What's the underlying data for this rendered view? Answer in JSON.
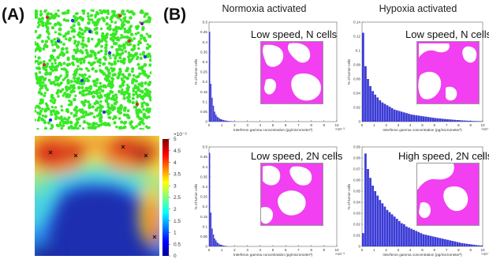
{
  "figure": {
    "panel_a_label": "(A)",
    "panel_b_label": "(B)",
    "colorbar": {
      "exponent": "×10⁻³",
      "ticks": [
        "5",
        "4.5",
        "4",
        "3.5",
        "3",
        "2.5",
        "2",
        "1.5",
        "1",
        "0.5",
        "0"
      ],
      "range": [
        0,
        0.005
      ]
    },
    "columns": [
      "Normoxia activated",
      "Hypoxia activated"
    ]
  },
  "chart_data": [
    {
      "type": "bar",
      "column": "Normoxia activated",
      "inset_label": "Low speed, N cells",
      "xlabel": "Interferon gamma concentration (pg/micrometer³)",
      "ylabel": "% of tumor cells",
      "x_exponent": "×10⁻³",
      "xlim": [
        0,
        10
      ],
      "ylim": [
        0,
        0.5
      ],
      "yticks": [
        "0",
        "0.05",
        "0.1",
        "0.15",
        "0.2",
        "0.25",
        "0.3",
        "0.35",
        "0.4",
        "0.45",
        "0.5"
      ],
      "xticks": [
        "0",
        "1",
        "2",
        "3",
        "4",
        "5",
        "6",
        "7",
        "8",
        "9",
        "10"
      ],
      "x": [
        0.0,
        0.1,
        0.2,
        0.3,
        0.4,
        0.5,
        0.6,
        0.7,
        0.8,
        0.9,
        1.0,
        1.1,
        1.2,
        1.3,
        1.4,
        1.5,
        1.6,
        1.7,
        1.8,
        1.9,
        2.0
      ],
      "values": [
        0.45,
        0.19,
        0.12,
        0.08,
        0.05,
        0.035,
        0.025,
        0.02,
        0.015,
        0.012,
        0.01,
        0.008,
        0.006,
        0.005,
        0.004,
        0.003,
        0.003,
        0.002,
        0.002,
        0.001,
        0.001
      ]
    },
    {
      "type": "bar",
      "column": "Hypoxia activated",
      "inset_label": "Low speed, N cells",
      "xlabel": "Interferon gamma concentration (pg/micrometer³)",
      "ylabel": "% of tumor cells",
      "x_exponent": "×10⁻³",
      "xlim": [
        0,
        10
      ],
      "ylim": [
        0,
        0.14
      ],
      "yticks": [
        "0",
        "0.02",
        "0.04",
        "0.06",
        "0.08",
        "0.1",
        "0.12",
        "0.14"
      ],
      "xticks": [
        "0",
        "1",
        "2",
        "3",
        "4",
        "5",
        "6",
        "7",
        "8",
        "9",
        "10"
      ],
      "x": [
        0.0,
        0.2,
        0.4,
        0.6,
        0.8,
        1.0,
        1.2,
        1.4,
        1.6,
        1.8,
        2.0,
        2.2,
        2.4,
        2.6,
        2.8,
        3.0,
        3.2,
        3.4,
        3.6,
        3.8,
        4.0,
        4.2,
        4.4,
        4.6,
        4.8,
        5.0,
        5.2,
        5.4,
        5.6,
        5.8,
        6.0,
        6.2,
        6.4,
        6.6,
        6.8,
        7.0,
        7.2,
        7.4,
        7.6,
        7.8,
        8.0,
        8.2,
        8.4,
        8.6,
        8.8,
        9.0,
        9.2,
        9.4,
        9.6,
        9.8
      ],
      "values": [
        0.125,
        0.078,
        0.06,
        0.05,
        0.043,
        0.038,
        0.034,
        0.03,
        0.027,
        0.025,
        0.023,
        0.021,
        0.019,
        0.017,
        0.016,
        0.015,
        0.014,
        0.013,
        0.012,
        0.011,
        0.01,
        0.0095,
        0.009,
        0.0085,
        0.008,
        0.0075,
        0.007,
        0.0065,
        0.006,
        0.0055,
        0.005,
        0.0047,
        0.0044,
        0.004,
        0.0037,
        0.0034,
        0.0031,
        0.0028,
        0.0025,
        0.0022,
        0.002,
        0.0018,
        0.0016,
        0.0014,
        0.0012,
        0.001,
        0.0009,
        0.0008,
        0.0007,
        0.0006
      ]
    },
    {
      "type": "bar",
      "column": "Normoxia activated",
      "inset_label": "Low speed, 2N cells",
      "xlabel": "Interferon gamma concentration (pg/micrometer³)",
      "ylabel": "% of tumor cells",
      "x_exponent": "×10⁻³",
      "xlim": [
        0,
        10
      ],
      "ylim": [
        0,
        0.5
      ],
      "yticks": [
        "0",
        "0.05",
        "0.1",
        "0.15",
        "0.2",
        "0.25",
        "0.3",
        "0.35",
        "0.4",
        "0.45",
        "0.5"
      ],
      "xticks": [
        "0",
        "1",
        "2",
        "3",
        "4",
        "5",
        "6",
        "7",
        "8",
        "9",
        "10"
      ],
      "x": [
        0.0,
        0.1,
        0.2,
        0.3,
        0.4,
        0.5,
        0.6,
        0.7,
        0.8,
        0.9,
        1.0,
        1.1,
        1.2,
        1.3,
        1.4
      ],
      "values": [
        0.47,
        0.17,
        0.09,
        0.06,
        0.04,
        0.03,
        0.02,
        0.015,
        0.01,
        0.008,
        0.006,
        0.004,
        0.003,
        0.002,
        0.001
      ]
    },
    {
      "type": "bar",
      "column": "Hypoxia activated",
      "inset_label": "High speed, 2N cells",
      "xlabel": "Interferon gamma concentration (pg/micrometer³)",
      "ylabel": "% of tumor cells",
      "x_exponent": "×10⁻³",
      "xlim": [
        0,
        10
      ],
      "ylim": [
        0,
        0.09
      ],
      "yticks": [
        "0",
        "0.01",
        "0.02",
        "0.03",
        "0.04",
        "0.05",
        "0.06",
        "0.07",
        "0.08",
        "0.09"
      ],
      "xticks": [
        "0",
        "1",
        "2",
        "3",
        "4",
        "5",
        "6",
        "7",
        "8",
        "9",
        "10"
      ],
      "x": [
        0.0,
        0.2,
        0.4,
        0.6,
        0.8,
        1.0,
        1.2,
        1.4,
        1.6,
        1.8,
        2.0,
        2.2,
        2.4,
        2.6,
        2.8,
        3.0,
        3.2,
        3.4,
        3.6,
        3.8,
        4.0,
        4.2,
        4.4,
        4.6,
        4.8,
        5.0,
        5.2,
        5.4,
        5.6,
        5.8,
        6.0,
        6.2,
        6.4,
        6.6,
        6.8,
        7.0,
        7.2,
        7.4,
        7.6,
        7.8,
        8.0,
        8.2,
        8.4,
        8.6,
        8.8,
        9.0,
        9.2,
        9.4,
        9.6,
        9.8
      ],
      "values": [
        0.012,
        0.084,
        0.07,
        0.062,
        0.055,
        0.05,
        0.046,
        0.042,
        0.039,
        0.036,
        0.033,
        0.031,
        0.029,
        0.027,
        0.025,
        0.023,
        0.021,
        0.02,
        0.018,
        0.017,
        0.016,
        0.015,
        0.014,
        0.013,
        0.012,
        0.011,
        0.0105,
        0.01,
        0.0095,
        0.009,
        0.0085,
        0.008,
        0.0075,
        0.007,
        0.0065,
        0.006,
        0.0055,
        0.005,
        0.0045,
        0.004,
        0.0035,
        0.003,
        0.0027,
        0.0024,
        0.0021,
        0.0018,
        0.0015,
        0.0012,
        0.001,
        0.0008
      ]
    }
  ],
  "colors": {
    "bar": "#3b3bd6",
    "agent_green": "#39e826",
    "inset_magenta": "#f13ff1"
  }
}
